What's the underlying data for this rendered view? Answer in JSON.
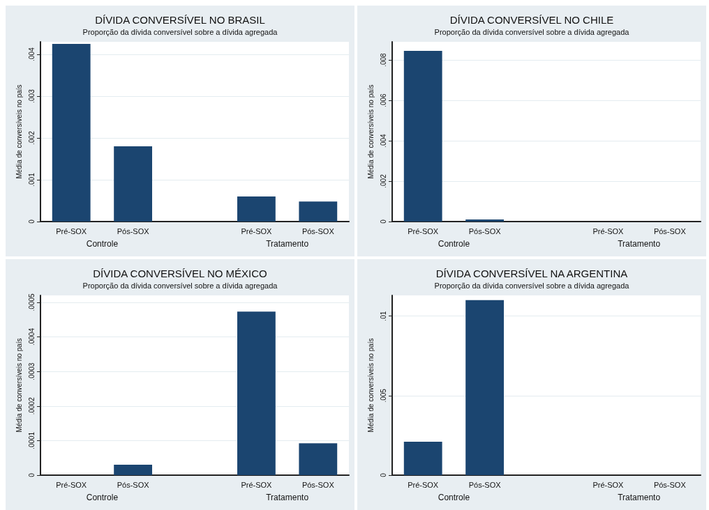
{
  "chart_data": [
    {
      "type": "bar",
      "title": "DÍVIDA CONVERSÍVEL NO BRASIL",
      "subtitle": "Proporção da dívida conversível sobre a dívida agregada",
      "ylabel": "Média de conversíveis no país",
      "categories": [
        "Pré-SOX",
        "Pós-SOX",
        null,
        "Pré-SOX",
        "Pós-SOX"
      ],
      "values": [
        0.00425,
        0.0018,
        null,
        0.0006,
        0.00048
      ],
      "color": "#1b4570",
      "ylim": [
        0,
        0.0043
      ],
      "yticks": [
        {
          "value": 0,
          "label": "0"
        },
        {
          "value": 0.001,
          "label": ".001"
        },
        {
          "value": 0.002,
          "label": ".002"
        },
        {
          "value": 0.003,
          "label": ".003"
        },
        {
          "value": 0.004,
          "label": ".004"
        }
      ],
      "grid": "y",
      "annotations": [
        "Controle",
        "Tratamento"
      ]
    },
    {
      "type": "bar",
      "title": "DÍVIDA CONVERSÍVEL NO CHILE",
      "subtitle": "Proporção da dívida conversível sobre a dívida agregada",
      "ylabel": "Média de conversíveis no país",
      "categories": [
        "Pré-SOX",
        "Pós-SOX",
        null,
        "Pré-SOX",
        "Pós-SOX"
      ],
      "values": [
        0.00845,
        0.0001,
        null,
        0,
        0
      ],
      "color": "#1b4570",
      "ylim": [
        0,
        0.0089
      ],
      "yticks": [
        {
          "value": 0,
          "label": "0"
        },
        {
          "value": 0.002,
          "label": ".002"
        },
        {
          "value": 0.004,
          "label": ".004"
        },
        {
          "value": 0.006,
          "label": ".006"
        },
        {
          "value": 0.008,
          "label": ".008"
        }
      ],
      "grid": "y",
      "annotations": [
        "Controle",
        "Tratamento"
      ]
    },
    {
      "type": "bar",
      "title": "DÍVIDA CONVERSÍVEL NO MÉXICO",
      "subtitle": "Proporção da dívida conversível sobre a dívida agregada",
      "ylabel": "Média de conversíveis no país",
      "categories": [
        "Pré-SOX",
        "Pós-SOX",
        null,
        "Pré-SOX",
        "Pós-SOX"
      ],
      "values": [
        0,
        3e-05,
        null,
        0.000473,
        9.2e-05
      ],
      "color": "#1b4570",
      "ylim": [
        0,
        0.00052
      ],
      "yticks": [
        {
          "value": 0,
          "label": "0"
        },
        {
          "value": 0.0001,
          "label": ".0001"
        },
        {
          "value": 0.0002,
          "label": ".0002"
        },
        {
          "value": 0.0003,
          "label": ".0003"
        },
        {
          "value": 0.0004,
          "label": ".0004"
        },
        {
          "value": 0.0005,
          "label": ".0005"
        }
      ],
      "grid": "y",
      "annotations": [
        "Controle",
        "Tratamento"
      ]
    },
    {
      "type": "bar",
      "title": "DÍVIDA CONVERSÍVEL NA ARGENTINA",
      "subtitle": "Proporção da dívida conversível sobre a dívida agregada",
      "ylabel": "Média de conversíveis no país",
      "categories": [
        "Pré-SOX",
        "Pós-SOX",
        null,
        "Pré-SOX",
        "Pós-SOX"
      ],
      "values": [
        0.0021,
        0.011,
        null,
        0,
        0
      ],
      "color": "#1b4570",
      "ylim": [
        0,
        0.0113
      ],
      "yticks": [
        {
          "value": 0,
          "label": "0"
        },
        {
          "value": 0.005,
          "label": ".005"
        },
        {
          "value": 0.01,
          "label": ".01"
        }
      ],
      "grid": "y",
      "annotations": [
        "Controle",
        "Tratamento"
      ]
    }
  ]
}
